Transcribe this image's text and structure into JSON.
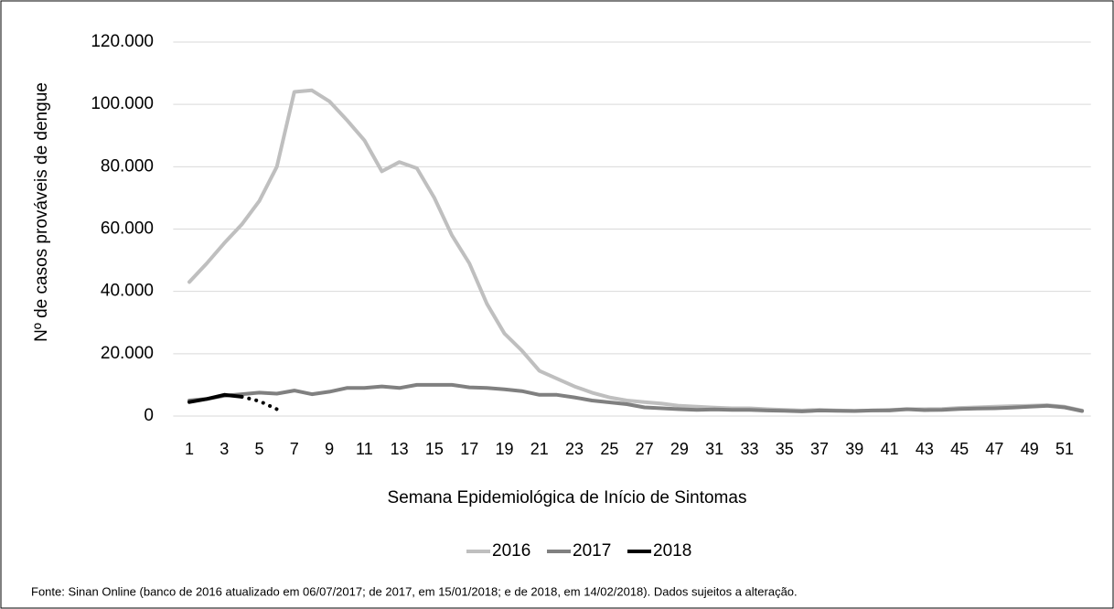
{
  "chart_data": {
    "type": "line",
    "y_label": "Nº de casos prováveis de dengue",
    "x_label": "Semana Epidemiológica de Início de Sintomas",
    "source": "Fonte: Sinan Online (banco de 2016 atualizado em 06/07/2017; de 2017, em 15/01/2018; e de 2018, em 14/02/2018). Dados sujeitos a alteração.",
    "categories": [
      "1",
      null,
      "3",
      null,
      "5",
      null,
      "7",
      null,
      "9",
      null,
      "11",
      null,
      "13",
      null,
      "15",
      null,
      "17",
      null,
      "19",
      null,
      "21",
      null,
      "23",
      null,
      "25",
      null,
      "27",
      null,
      "29",
      null,
      "31",
      null,
      "33",
      null,
      "35",
      null,
      "37",
      null,
      "39",
      null,
      "41",
      null,
      "43",
      null,
      "45",
      null,
      "47",
      null,
      "49",
      null,
      "51",
      null
    ],
    "series": [
      {
        "name": "2016",
        "color": "#bfbfbf",
        "values": [
          43000,
          49000,
          55500,
          61500,
          69000,
          80000,
          104000,
          104500,
          101000,
          95000,
          88500,
          78500,
          81500,
          79500,
          70000,
          58000,
          49000,
          36000,
          26500,
          21000,
          14500,
          12000,
          9500,
          7500,
          6000,
          5000,
          4500,
          4000,
          3300,
          3000,
          2700,
          2500,
          2500,
          2200,
          2000,
          1800,
          2000,
          1800,
          1700,
          1800,
          2000,
          2200,
          2200,
          2300,
          2600,
          2800,
          3000,
          3200,
          3300,
          3500,
          3000,
          1800
        ]
      },
      {
        "name": "2017",
        "color": "#808080",
        "values": [
          5000,
          5500,
          6500,
          7000,
          7500,
          7200,
          8200,
          7000,
          7800,
          9000,
          9000,
          9500,
          9000,
          10000,
          10000,
          10000,
          9200,
          9000,
          8600,
          8000,
          6800,
          6800,
          6000,
          5000,
          4400,
          3800,
          2800,
          2500,
          2200,
          2000,
          2100,
          2000,
          2000,
          1800,
          1700,
          1500,
          1800,
          1700,
          1600,
          1800,
          1800,
          2200,
          1900,
          2000,
          2300,
          2400,
          2500,
          2700,
          3000,
          3300,
          2800,
          1600
        ]
      },
      {
        "name": "2018",
        "color": "#000000",
        "dotted_from": 3,
        "values": [
          4500,
          5500,
          6800,
          6200,
          4800,
          2200,
          null,
          null,
          null,
          null,
          null,
          null,
          null,
          null,
          null,
          null,
          null,
          null,
          null,
          null,
          null,
          null,
          null,
          null,
          null,
          null,
          null,
          null,
          null,
          null,
          null,
          null,
          null,
          null,
          null,
          null,
          null,
          null,
          null,
          null,
          null,
          null,
          null,
          null,
          null,
          null,
          null,
          null,
          null,
          null,
          null,
          null
        ]
      }
    ],
    "ylim": [
      0,
      120000
    ],
    "yticks": [
      0,
      {
        "value": 20000,
        "label": "20.000"
      },
      {
        "value": 40000,
        "label": "40.000"
      },
      {
        "value": 60000,
        "label": "60.000"
      },
      {
        "value": 80000,
        "label": "80.000"
      },
      {
        "value": 100000,
        "label": "100.000"
      },
      {
        "value": 120000,
        "label": "120.000"
      }
    ],
    "grid": true,
    "legend": "bottom"
  }
}
